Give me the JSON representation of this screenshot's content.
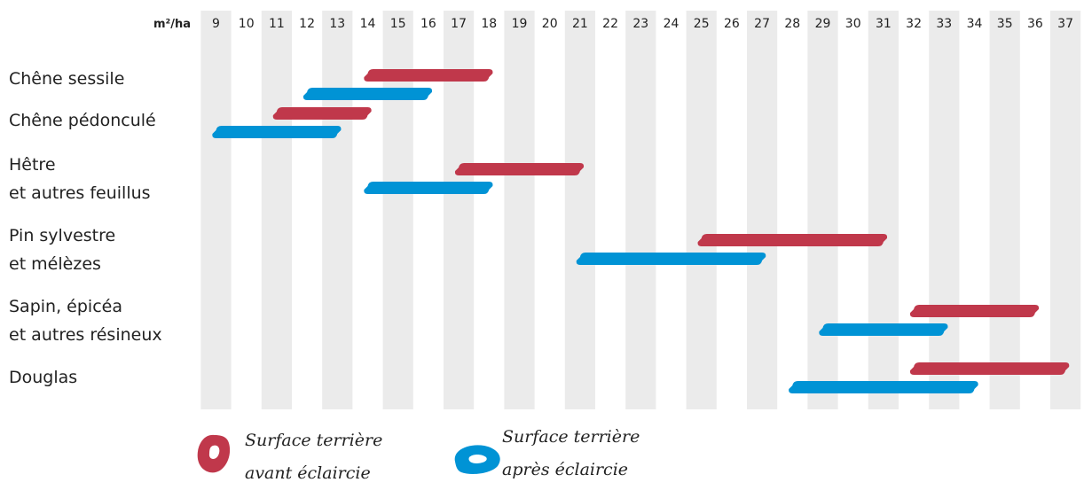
{
  "chart_data": {
    "type": "bar",
    "unit": "m²/ha",
    "x_ticks": [
      9,
      10,
      11,
      12,
      13,
      14,
      15,
      16,
      17,
      18,
      19,
      20,
      21,
      22,
      23,
      24,
      25,
      26,
      27,
      28,
      29,
      30,
      31,
      32,
      33,
      34,
      35,
      36,
      37
    ],
    "xlim": [
      9,
      37
    ],
    "categories": [
      [
        "Chêne sessile"
      ],
      [
        "Chêne pédonculé"
      ],
      [
        "Hêtre",
        "et autres feuillus"
      ],
      [
        "Pin sylvestre",
        "et mélèzes"
      ],
      [
        "Sapin, épicéa",
        "et autres résineux"
      ],
      [
        "Douglas"
      ]
    ],
    "series": [
      {
        "name": "Surface terrière avant éclaircie",
        "name_lines": [
          "Surface terrière",
          "avant éclaircie"
        ],
        "color": "#c0384b",
        "ranges": [
          [
            14,
            18
          ],
          [
            11,
            14
          ],
          [
            17,
            21
          ],
          [
            25,
            31
          ],
          [
            32,
            36
          ],
          [
            32,
            37
          ]
        ]
      },
      {
        "name": "Surface terrière après éclaircie",
        "name_lines": [
          "Surface terrière",
          "après éclaircie"
        ],
        "color": "#0093d5",
        "ranges": [
          [
            12,
            16
          ],
          [
            9,
            13
          ],
          [
            14,
            18
          ],
          [
            21,
            27
          ],
          [
            29,
            33
          ],
          [
            28,
            34
          ]
        ]
      }
    ],
    "colors": {
      "band": "#ebebeb",
      "text": "#222222"
    }
  }
}
